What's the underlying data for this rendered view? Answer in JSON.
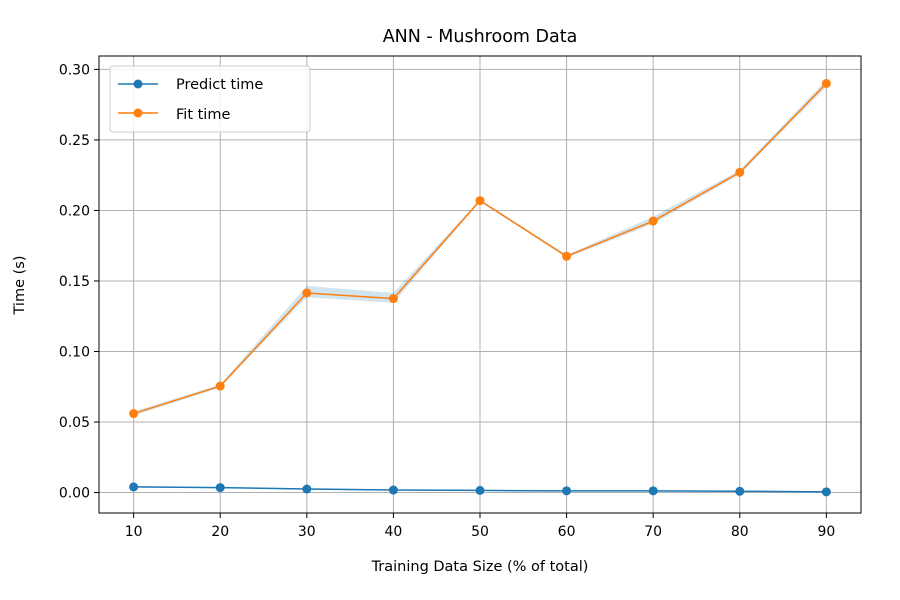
{
  "chart_data": {
    "type": "line",
    "title": "ANN - Mushroom Data",
    "xlabel": "Training Data Size (% of total)",
    "ylabel": "Time (s)",
    "x": [
      10,
      20,
      30,
      40,
      50,
      60,
      70,
      80,
      90
    ],
    "xlim": [
      6,
      94
    ],
    "ylim": [
      -0.0145,
      0.3095
    ],
    "xticks": [
      "10",
      "20",
      "30",
      "40",
      "50",
      "60",
      "70",
      "80",
      "90"
    ],
    "yticks": [
      "0.00",
      "0.05",
      "0.10",
      "0.15",
      "0.20",
      "0.25",
      "0.30"
    ],
    "grid": true,
    "legend_position": "top-left",
    "series": [
      {
        "name": "Predict time",
        "color": "#1f77b4",
        "values": [
          0.004,
          0.0035,
          0.0025,
          0.0018,
          0.0015,
          0.0012,
          0.0012,
          0.0009,
          0.0005
        ],
        "band_lower": [
          0.0035,
          0.0031,
          0.0021,
          0.0015,
          0.0012,
          0.0009,
          0.0009,
          0.0007,
          0.0003
        ],
        "band_upper": [
          0.0045,
          0.0039,
          0.0029,
          0.0021,
          0.0018,
          0.0015,
          0.0015,
          0.0011,
          0.0007
        ]
      },
      {
        "name": "Fit time",
        "color": "#ff7f0e",
        "values": [
          0.056,
          0.0755,
          0.1415,
          0.1375,
          0.207,
          0.1675,
          0.1925,
          0.227,
          0.29
        ],
        "band_lower": [
          0.0545,
          0.0745,
          0.1385,
          0.1345,
          0.2062,
          0.1665,
          0.1905,
          0.2255,
          0.2875
        ],
        "band_upper": [
          0.0575,
          0.0765,
          0.1465,
          0.1415,
          0.2078,
          0.1685,
          0.1955,
          0.2285,
          0.2925
        ]
      }
    ]
  }
}
